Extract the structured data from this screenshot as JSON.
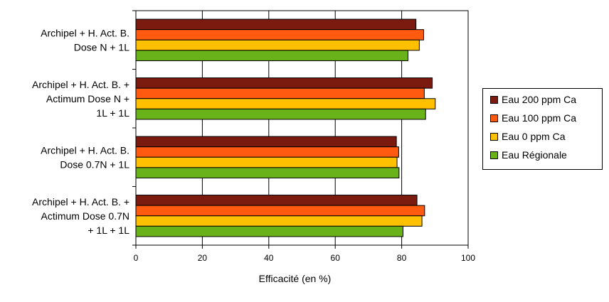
{
  "chart_data": {
    "type": "bar",
    "orientation": "horizontal",
    "title": "",
    "xlabel": "Efficacité (en %)",
    "ylabel": "",
    "xlim": [
      0,
      100
    ],
    "xticks": [
      0,
      20,
      40,
      60,
      80,
      100
    ],
    "grid": "vertical major gridlines",
    "legend_position": "right",
    "categories": [
      [
        "Archipel + H. Act. B.",
        "Dose N + 1L"
      ],
      [
        "Archipel + H. Act. B. +",
        "Actimum Dose N +",
        "1L + 1L"
      ],
      [
        "Archipel + H. Act. B.",
        "Dose 0.7N + 1L"
      ],
      [
        "Archipel + H. Act. B. +",
        "Actimum Dose 0.7N",
        "+ 1L + 1L"
      ]
    ],
    "series": [
      {
        "name": "Eau 200 ppm Ca",
        "color": "#7B1A0E",
        "values": [
          84.3,
          89.2,
          78.4,
          84.6
        ]
      },
      {
        "name": "Eau 100 ppm Ca",
        "color": "#FF5A10",
        "values": [
          86.6,
          86.8,
          79.1,
          86.9
        ]
      },
      {
        "name": "Eau 0 ppm Ca",
        "color": "#FFC000",
        "values": [
          85.3,
          90.1,
          78.6,
          86.1
        ]
      },
      {
        "name": "Eau Régionale",
        "color": "#6AB21A",
        "values": [
          81.9,
          87.2,
          79.2,
          80.4
        ]
      }
    ]
  }
}
